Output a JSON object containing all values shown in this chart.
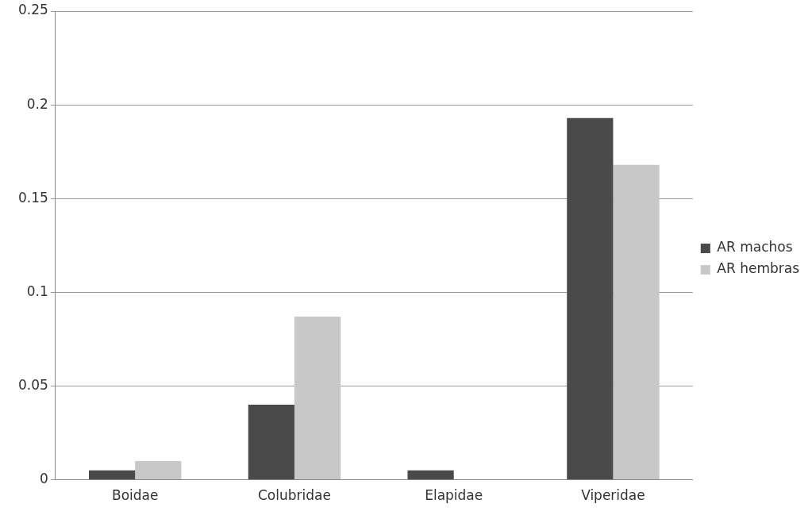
{
  "chart_data": {
    "type": "bar",
    "categories": [
      "Boidae",
      "Colubridae",
      "Elapidae",
      "Viperidae"
    ],
    "series": [
      {
        "name": "AR machos",
        "color": "#4a4a4a",
        "values": [
          0.005,
          0.04,
          0.005,
          0.193
        ]
      },
      {
        "name": "AR hembras",
        "color": "#c8c8c8",
        "values": [
          0.01,
          0.087,
          0,
          0.168
        ]
      }
    ],
    "ylim": [
      0,
      0.25
    ],
    "yticks": [
      0,
      0.05,
      0.1,
      0.15,
      0.2,
      0.25
    ],
    "grid": "y",
    "legend": "right"
  }
}
